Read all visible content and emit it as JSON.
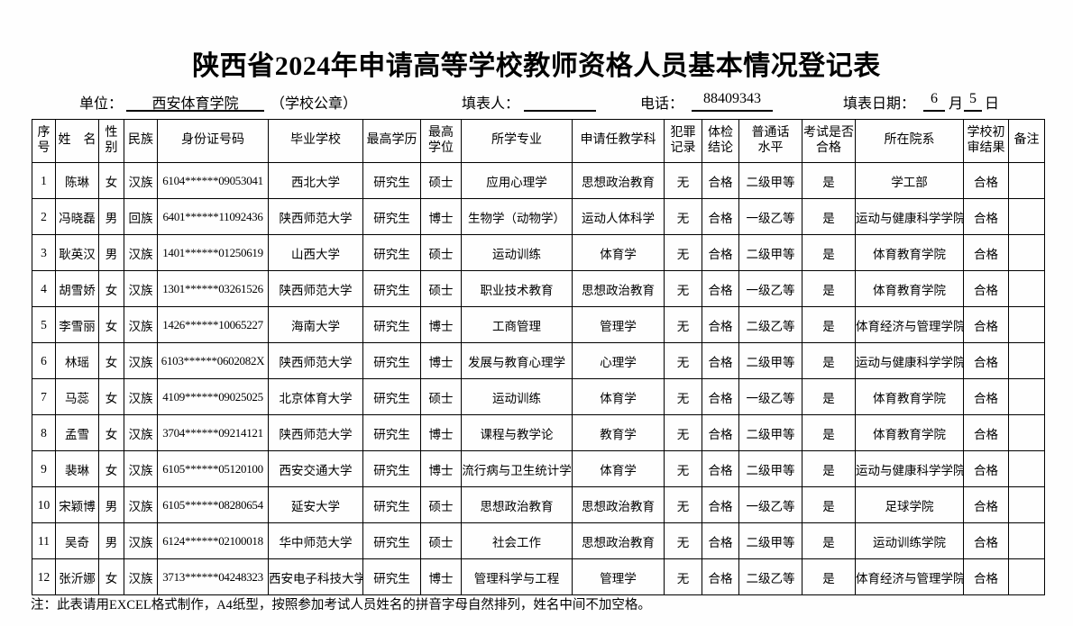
{
  "page": {
    "title": "陕西省2024年申请高等学校教师资格人员基本情况登记表",
    "note": "注：此表请用EXCEL格式制作，A4纸型，按照参加考试人员姓名的拼音字母自然排列，姓名中间不加空格。"
  },
  "meta": {
    "unit_label": "单位：",
    "unit_value": "西安体育学院",
    "seal_label": "（学校公章）",
    "filler_label": "填表人：",
    "filler_value": "",
    "phone_label": "电话：",
    "phone_value": "88409343",
    "date_label": "填表日期：",
    "date_month": "6",
    "month_label": "月",
    "date_day": "5",
    "day_label": "日"
  },
  "table": {
    "columns": [
      "序\n号",
      "姓　名",
      "性\n别",
      "民族",
      "身份证号码",
      "毕业学校",
      "最高学历",
      "最高\n学位",
      "所学专业",
      "申请任教学科",
      "犯罪\n记录",
      "体检\n结论",
      "普通话\n水平",
      "考试是否\n合格",
      "所在院系",
      "学校初\n审结果",
      "备注"
    ],
    "rows": [
      [
        "1",
        "陈琳",
        "女",
        "汉族",
        "6104******09053041",
        "西北大学",
        "研究生",
        "硕士",
        "应用心理学",
        "思想政治教育",
        "无",
        "合格",
        "二级甲等",
        "是",
        "学工部",
        "合格",
        ""
      ],
      [
        "2",
        "冯晓磊",
        "男",
        "回族",
        "6401******11092436",
        "陕西师范大学",
        "研究生",
        "博士",
        "生物学（动物学）",
        "运动人体科学",
        "无",
        "合格",
        "一级乙等",
        "是",
        "运动与健康科学学院",
        "合格",
        ""
      ],
      [
        "3",
        "耿英汉",
        "男",
        "汉族",
        "1401******01250619",
        "山西大学",
        "研究生",
        "硕士",
        "运动训练",
        "体育学",
        "无",
        "合格",
        "二级甲等",
        "是",
        "体育教育学院",
        "合格",
        ""
      ],
      [
        "4",
        "胡雪娇",
        "女",
        "汉族",
        "1301******03261526",
        "陕西师范大学",
        "研究生",
        "硕士",
        "职业技术教育",
        "思想政治教育",
        "无",
        "合格",
        "一级乙等",
        "是",
        "体育教育学院",
        "合格",
        ""
      ],
      [
        "5",
        "李雪丽",
        "女",
        "汉族",
        "1426******10065227",
        "海南大学",
        "研究生",
        "博士",
        "工商管理",
        "管理学",
        "无",
        "合格",
        "二级乙等",
        "是",
        "体育经济与管理学院",
        "合格",
        ""
      ],
      [
        "6",
        "林瑶",
        "女",
        "汉族",
        "6103******0602082X",
        "陕西师范大学",
        "研究生",
        "博士",
        "发展与教育心理学",
        "心理学",
        "无",
        "合格",
        "二级甲等",
        "是",
        "运动与健康科学学院",
        "合格",
        ""
      ],
      [
        "7",
        "马蕊",
        "女",
        "汉族",
        "4109******09025025",
        "北京体育大学",
        "研究生",
        "硕士",
        "运动训练",
        "体育学",
        "无",
        "合格",
        "一级乙等",
        "是",
        "体育教育学院",
        "合格",
        ""
      ],
      [
        "8",
        "孟雪",
        "女",
        "汉族",
        "3704******09214121",
        "陕西师范大学",
        "研究生",
        "博士",
        "课程与教学论",
        "教育学",
        "无",
        "合格",
        "二级甲等",
        "是",
        "体育教育学院",
        "合格",
        ""
      ],
      [
        "9",
        "裴琳",
        "女",
        "汉族",
        "6105******05120100",
        "西安交通大学",
        "研究生",
        "博士",
        "流行病与卫生统计学",
        "体育学",
        "无",
        "合格",
        "二级甲等",
        "是",
        "运动与健康科学学院",
        "合格",
        ""
      ],
      [
        "10",
        "宋颖博",
        "男",
        "汉族",
        "6105******08280654",
        "延安大学",
        "研究生",
        "硕士",
        "思想政治教育",
        "思想政治教育",
        "无",
        "合格",
        "一级乙等",
        "是",
        "足球学院",
        "合格",
        ""
      ],
      [
        "11",
        "吴奇",
        "男",
        "汉族",
        "6124******02100018",
        "华中师范大学",
        "研究生",
        "硕士",
        "社会工作",
        "思想政治教育",
        "无",
        "合格",
        "二级甲等",
        "是",
        "运动训练学院",
        "合格",
        ""
      ],
      [
        "12",
        "张沂娜",
        "女",
        "汉族",
        "3713******04248323",
        "西安电子科技大学",
        "研究生",
        "博士",
        "管理科学与工程",
        "管理学",
        "无",
        "合格",
        "二级乙等",
        "是",
        "体育经济与管理学院",
        "合格",
        ""
      ]
    ]
  }
}
